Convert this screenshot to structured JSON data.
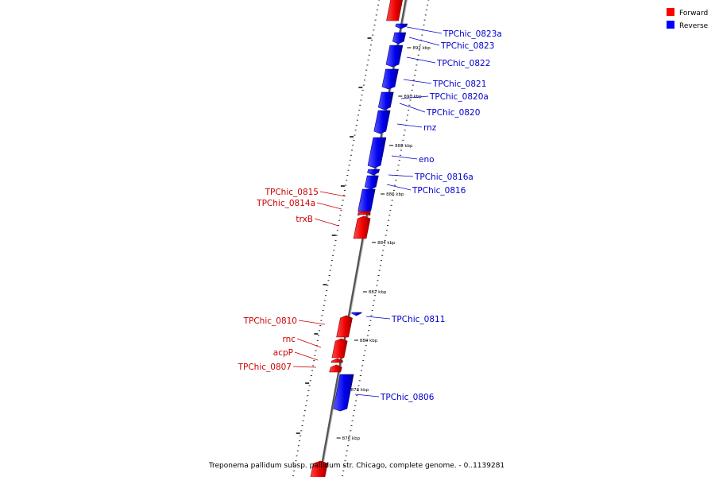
{
  "caption": "Treponema pallidum subsp. pallidum str. Chicago, complete genome. - 0..1139281",
  "legend": [
    {
      "label": "Forward",
      "color": "#ff0000"
    },
    {
      "label": "Reverse",
      "color": "#0000ff"
    }
  ],
  "colors": {
    "forward": "#ff0000",
    "reverse": "#0000ff",
    "forward_label": "#cc0000",
    "reverse_label": "#0000cc",
    "backbone": "#888888"
  },
  "scale_ticks_kbp": [
    892,
    890,
    888,
    886,
    884,
    882,
    880,
    878,
    876
  ],
  "scale_labels": [
    "892 kbp",
    "890 kbp",
    "888 kbp",
    "886 kbp",
    "884 kbp",
    "882 kbp",
    "880 kbp",
    "878 kbp",
    "876 kbp"
  ],
  "genes": [
    {
      "name": "",
      "strand": "forward"
    },
    {
      "name": "TPChic_0823a",
      "strand": "reverse"
    },
    {
      "name": "TPChic_0823",
      "strand": "reverse"
    },
    {
      "name": "TPChic_0822",
      "strand": "reverse"
    },
    {
      "name": "TPChic_0821",
      "strand": "reverse"
    },
    {
      "name": "TPChic_0820a",
      "strand": "reverse"
    },
    {
      "name": "TPChic_0820",
      "strand": "reverse"
    },
    {
      "name": "rnz",
      "strand": "reverse"
    },
    {
      "name": "eno",
      "strand": "reverse"
    },
    {
      "name": "TPChic_0816a",
      "strand": "reverse"
    },
    {
      "name": "TPChic_0816",
      "strand": "reverse"
    },
    {
      "name": "TPChic_0815",
      "strand": "forward"
    },
    {
      "name": "TPChic_0814a",
      "strand": "forward"
    },
    {
      "name": "trxB",
      "strand": "forward"
    },
    {
      "name": "TPChic_0811",
      "strand": "reverse"
    },
    {
      "name": "TPChic_0810",
      "strand": "forward"
    },
    {
      "name": "rnc",
      "strand": "forward"
    },
    {
      "name": "acpP",
      "strand": "forward"
    },
    {
      "name": "TPChic_0807",
      "strand": "forward"
    },
    {
      "name": "TPChic_0806",
      "strand": "reverse"
    },
    {
      "name": "",
      "strand": "forward"
    }
  ]
}
